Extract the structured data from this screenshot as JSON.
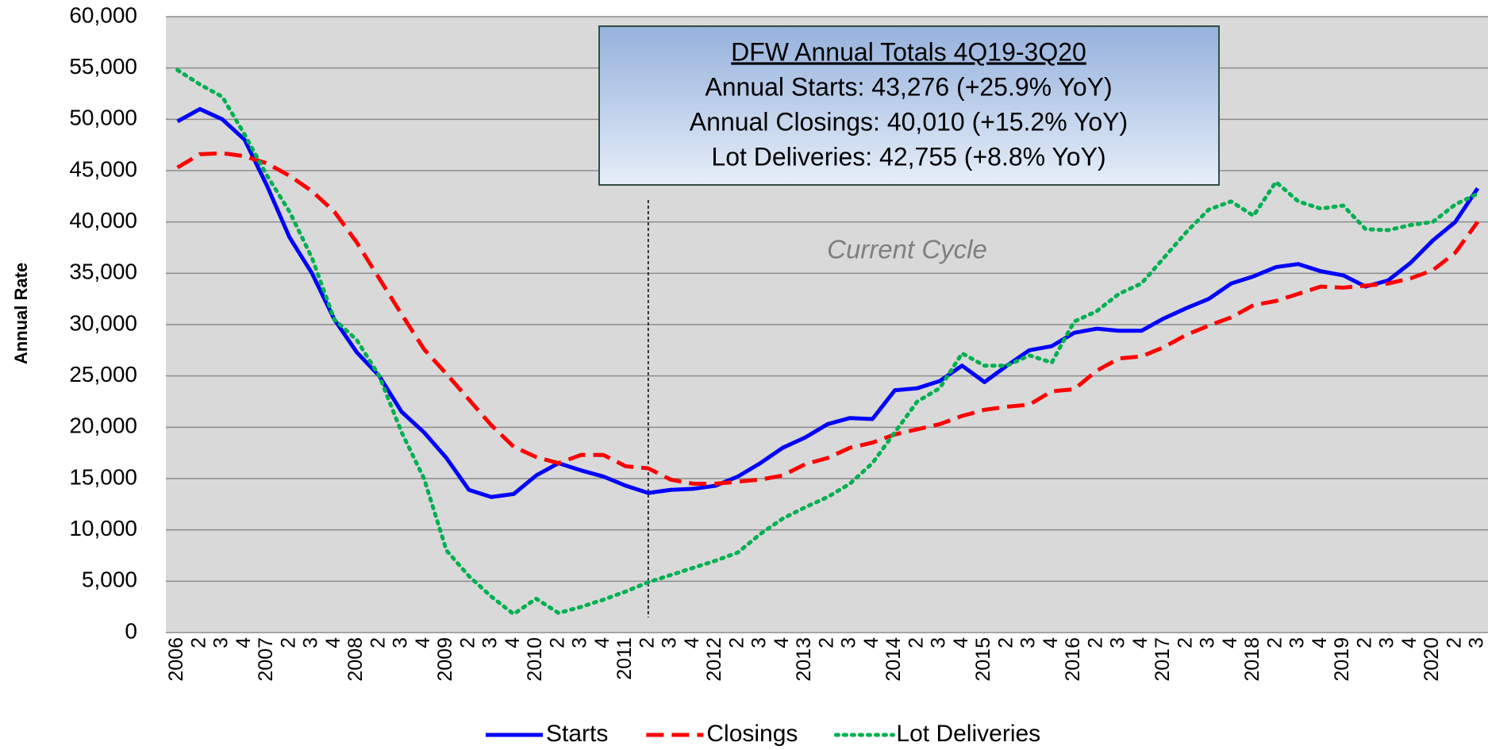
{
  "chart_data": {
    "type": "line",
    "y_label": "Annual Rate",
    "annotation": "Current Cycle",
    "box": {
      "title": "DFW Annual Totals 4Q19-3Q20",
      "lines": [
        "Annual Starts: 43,276 (+25.9% YoY)",
        "Annual Closings: 40,010 (+15.2% YoY)",
        "Lot Deliveries: 42,755 (+8.8% YoY)"
      ]
    },
    "categories": [
      "2006",
      "2",
      "3",
      "4",
      "2007",
      "2",
      "3",
      "4",
      "2008",
      "2",
      "3",
      "4",
      "2009",
      "2",
      "3",
      "4",
      "2010",
      "2",
      "3",
      "4",
      "2011",
      "2",
      "3",
      "4",
      "2012",
      "2",
      "3",
      "4",
      "2013",
      "2",
      "3",
      "4",
      "2014",
      "2",
      "3",
      "4",
      "2015",
      "2",
      "3",
      "4",
      "2016",
      "2",
      "3",
      "4",
      "2017",
      "2",
      "3",
      "4",
      "2018",
      "2",
      "3",
      "4",
      "2019",
      "2",
      "3",
      "4",
      "2020",
      "2",
      "3"
    ],
    "ylim": [
      0,
      60000
    ],
    "yticks": [
      0,
      {
        "value": 5000,
        "label": "5,000"
      },
      {
        "value": 10000,
        "label": "10,000"
      },
      {
        "value": 15000,
        "label": "15,000"
      },
      {
        "value": 20000,
        "label": "20,000"
      },
      {
        "value": 25000,
        "label": "25,000"
      },
      {
        "value": 30000,
        "label": "30,000"
      },
      {
        "value": 35000,
        "label": "35,000"
      },
      {
        "value": 40000,
        "label": "40,000"
      },
      {
        "value": 45000,
        "label": "45,000"
      },
      {
        "value": 50000,
        "label": "50,000"
      },
      {
        "value": 55000,
        "label": "55,000"
      },
      {
        "value": 60000,
        "label": "60,000"
      }
    ],
    "grid": true,
    "series": [
      {
        "name": "Starts",
        "color": "#0000ff",
        "dash": "solid",
        "values": [
          49800,
          51000,
          50000,
          48000,
          43500,
          38500,
          35000,
          30500,
          27300,
          25000,
          21500,
          19500,
          17000,
          13900,
          13200,
          13500,
          15300,
          16500,
          15800,
          15200,
          14300,
          13600,
          13900,
          14000,
          14300,
          15200,
          16500,
          18000,
          19000,
          20300,
          20900,
          20800,
          23600,
          23800,
          24500,
          26000,
          24400,
          26000,
          27500,
          27900,
          29200,
          29600,
          29400,
          29400,
          30600,
          31600,
          32500,
          34000,
          34700,
          35600,
          35900,
          35200,
          34800,
          33700,
          34300,
          36000,
          38200,
          40000,
          43276
        ]
      },
      {
        "name": "Closings",
        "color": "#ff0000",
        "dash": "dashed",
        "values": [
          45300,
          46600,
          46700,
          46400,
          45700,
          44500,
          43000,
          41000,
          38000,
          34500,
          31000,
          27600,
          25200,
          22700,
          20200,
          18100,
          17100,
          16500,
          17300,
          17300,
          16200,
          16000,
          14900,
          14500,
          14500,
          14700,
          14900,
          15300,
          16400,
          17000,
          18000,
          18500,
          19300,
          19800,
          20300,
          21100,
          21700,
          22000,
          22200,
          23500,
          23700,
          25500,
          26700,
          26900,
          27800,
          29000,
          29900,
          30700,
          31900,
          32300,
          33000,
          33700,
          33600,
          33800,
          34000,
          34500,
          35300,
          37000,
          40010
        ]
      },
      {
        "name": "Lot Deliveries",
        "color": "#00b050",
        "dash": "dotted",
        "values": [
          54800,
          53400,
          52200,
          48500,
          44500,
          41000,
          36500,
          30500,
          28500,
          25000,
          19500,
          15000,
          8000,
          5500,
          3500,
          1800,
          3300,
          1900,
          2500,
          3200,
          4000,
          4900,
          5600,
          6300,
          7000,
          7800,
          9600,
          11100,
          12200,
          13200,
          14500,
          16500,
          19500,
          22500,
          23800,
          27200,
          26000,
          26000,
          27000,
          26300,
          30300,
          31300,
          33000,
          34000,
          36500,
          39000,
          41200,
          42000,
          40600,
          43900,
          42000,
          41300,
          41600,
          39300,
          39200,
          39700,
          40000,
          41700,
          42755
        ]
      }
    ]
  }
}
